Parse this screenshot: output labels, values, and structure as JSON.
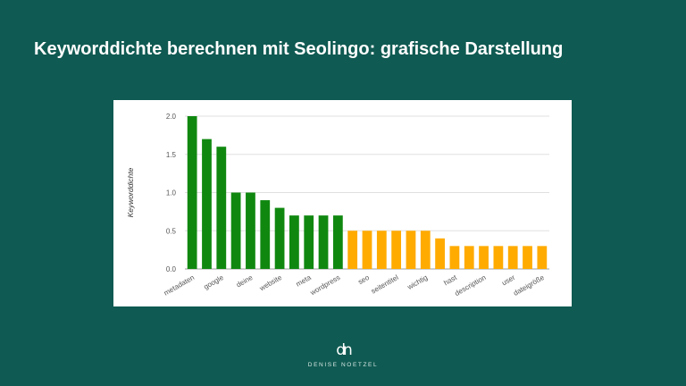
{
  "slide": {
    "title": "Keyworddichte berechnen mit Seolingo: grafische Darstellung"
  },
  "brand": {
    "logo_mark": "dn",
    "logo_text": "DENISE NOETZEL"
  },
  "colors": {
    "background": "#0f5a52",
    "bar_green": "#108810",
    "bar_orange": "#ffab00",
    "grid": "#e0e0e0",
    "axis_text": "#555555"
  },
  "chart_data": {
    "type": "bar",
    "title": "",
    "xlabel": "",
    "ylabel": "Keyworddichte",
    "ylim": [
      0,
      2.0
    ],
    "yticks": [
      "0.0",
      "0.5",
      "1.0",
      "1.5",
      "2.0"
    ],
    "grid": true,
    "legend": "none",
    "bars": [
      {
        "value": 2.0,
        "label": "metadaten",
        "color": "green"
      },
      {
        "value": 1.7,
        "label": "",
        "color": "green"
      },
      {
        "value": 1.6,
        "label": "google",
        "color": "green"
      },
      {
        "value": 1.0,
        "label": "",
        "color": "green"
      },
      {
        "value": 1.0,
        "label": "deine",
        "color": "green"
      },
      {
        "value": 0.9,
        "label": "",
        "color": "green"
      },
      {
        "value": 0.8,
        "label": "website",
        "color": "green"
      },
      {
        "value": 0.7,
        "label": "",
        "color": "green"
      },
      {
        "value": 0.7,
        "label": "meta",
        "color": "green"
      },
      {
        "value": 0.7,
        "label": "",
        "color": "green"
      },
      {
        "value": 0.7,
        "label": "wordpress",
        "color": "green"
      },
      {
        "value": 0.5,
        "label": "",
        "color": "orange"
      },
      {
        "value": 0.5,
        "label": "seo",
        "color": "orange"
      },
      {
        "value": 0.5,
        "label": "",
        "color": "orange"
      },
      {
        "value": 0.5,
        "label": "seitentitel",
        "color": "orange"
      },
      {
        "value": 0.5,
        "label": "",
        "color": "orange"
      },
      {
        "value": 0.5,
        "label": "wichtig",
        "color": "orange"
      },
      {
        "value": 0.4,
        "label": "",
        "color": "orange"
      },
      {
        "value": 0.3,
        "label": "hast",
        "color": "orange"
      },
      {
        "value": 0.3,
        "label": "",
        "color": "orange"
      },
      {
        "value": 0.3,
        "label": "description",
        "color": "orange"
      },
      {
        "value": 0.3,
        "label": "",
        "color": "orange"
      },
      {
        "value": 0.3,
        "label": "user",
        "color": "orange"
      },
      {
        "value": 0.3,
        "label": "",
        "color": "orange"
      },
      {
        "value": 0.3,
        "label": "dateigröße",
        "color": "orange"
      }
    ]
  }
}
